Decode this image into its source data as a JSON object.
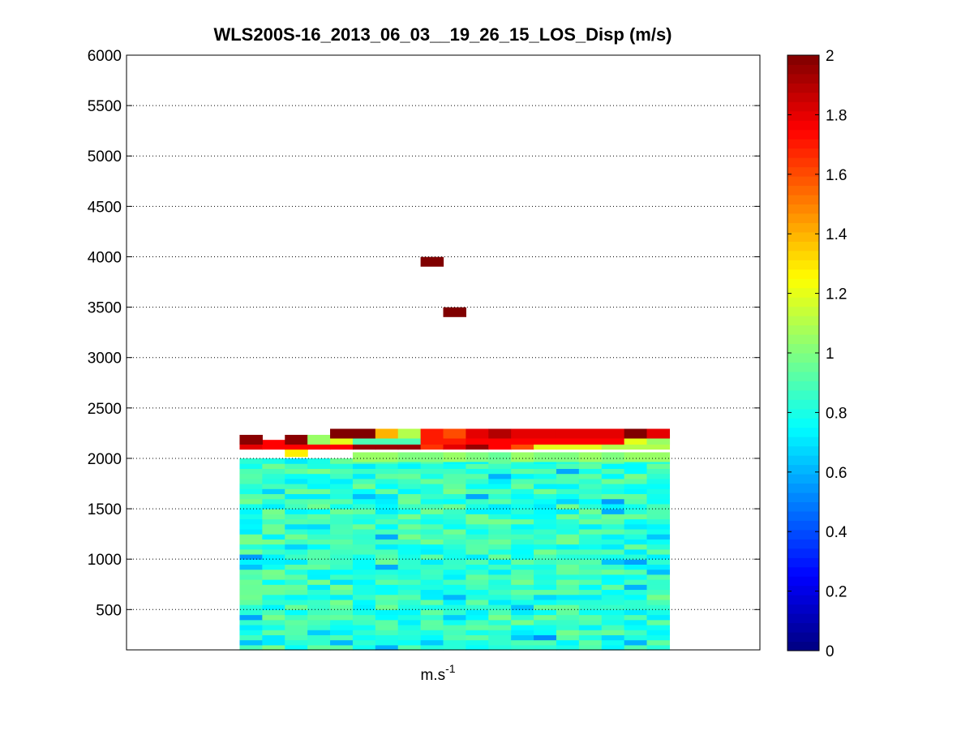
{
  "chart_data": {
    "type": "heatmap",
    "title": "WLS200S-16_2013_06_03__19_26_15_LOS_Disp (m/s)",
    "xlabel_base": "m.s",
    "xlabel_exp": "-1",
    "ylabel": "",
    "ylim": [
      100,
      6000
    ],
    "yticks": [
      500,
      1000,
      1500,
      2000,
      2500,
      3000,
      3500,
      4000,
      4500,
      5000,
      5500,
      6000
    ],
    "ygrid": "dotted",
    "colormap": "jet",
    "colorbar": {
      "range": [
        0,
        2
      ],
      "ticks": [
        0,
        0.2,
        0.4,
        0.6,
        0.8,
        1,
        1.2,
        1.4,
        1.6,
        1.8,
        2
      ],
      "placement": "right"
    },
    "columns": 19,
    "profile_column_range": [
      5,
      23
    ],
    "x_range": [
      0,
      28
    ],
    "bulk_layer": {
      "altitude_range": [
        100,
        2000
      ],
      "bin_height": 50,
      "typical_value": 0.85,
      "value_spread": [
        0.55,
        1.1
      ]
    },
    "upper_bins": [
      {
        "altitude": 2012,
        "values": [
          null,
          null,
          null,
          null,
          null,
          1.05,
          1.05,
          1.0,
          1.0,
          1.05,
          1.0,
          0.95,
          1.05,
          1.0,
          1.0,
          1.05,
          1.0,
          1.05,
          1.05
        ]
      },
      {
        "altitude": 2062,
        "values": [
          null,
          null,
          1.28,
          null,
          null,
          null,
          null,
          null,
          null,
          null,
          null,
          null,
          null,
          null,
          null,
          null,
          null,
          null,
          null
        ]
      },
      {
        "altitude": 2135,
        "values": [
          1.8,
          1.75,
          1.75,
          1.75,
          1.75,
          1.95,
          1.95,
          1.95,
          1.65,
          1.8,
          1.95,
          1.75,
          1.6,
          1.2,
          1.2,
          1.2,
          1.1,
          1.1,
          1.1
        ]
      },
      {
        "altitude": 2185,
        "values": [
          1.98,
          null,
          1.98,
          1.05,
          1.2,
          0.9,
          0.9,
          0.9,
          1.7,
          1.7,
          1.75,
          1.75,
          1.75,
          1.75,
          1.75,
          1.75,
          1.75,
          1.2,
          1.05
        ]
      },
      {
        "altitude": 2245,
        "values": [
          null,
          null,
          null,
          null,
          2.0,
          2.0,
          1.4,
          1.1,
          1.7,
          1.6,
          1.8,
          1.9,
          1.8,
          1.8,
          1.8,
          1.8,
          1.8,
          2.0,
          1.8
        ]
      },
      {
        "altitude": 3450,
        "values": [
          null,
          null,
          null,
          null,
          null,
          null,
          null,
          null,
          null,
          2.0,
          null,
          null,
          null,
          null,
          null,
          null,
          null,
          null,
          null
        ]
      },
      {
        "altitude": 3950,
        "values": [
          null,
          null,
          null,
          null,
          null,
          null,
          null,
          null,
          2.0,
          null,
          null,
          null,
          null,
          null,
          null,
          null,
          null,
          null,
          null
        ]
      }
    ]
  }
}
